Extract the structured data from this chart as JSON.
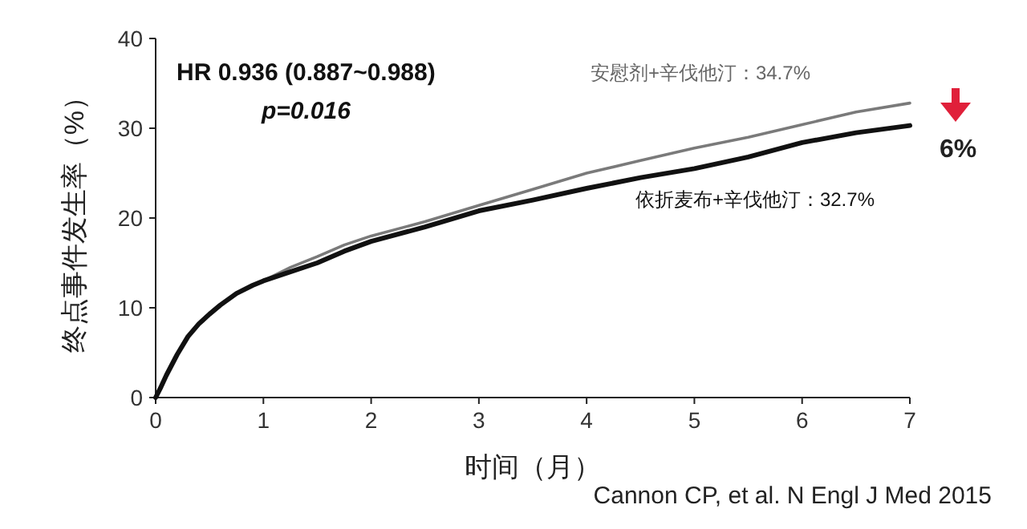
{
  "chart_data": {
    "type": "line",
    "xlabel": "时间（月）",
    "ylabel": "终点事件发生率（%）",
    "x": [
      0,
      0.05,
      0.1,
      0.2,
      0.3,
      0.4,
      0.5,
      0.6,
      0.75,
      0.9,
      1,
      1.25,
      1.5,
      1.75,
      2,
      2.5,
      3,
      3.5,
      4,
      4.5,
      5,
      5.5,
      6,
      6.5,
      7
    ],
    "series": [
      {
        "name": "安慰剂+辛伐他汀：34.7%",
        "color": "#7a7a7a",
        "values": [
          0,
          1.2,
          2.5,
          4.8,
          6.8,
          8.2,
          9.3,
          10.3,
          11.6,
          12.5,
          13,
          14.5,
          15.7,
          17,
          18,
          19.6,
          21.4,
          23.2,
          25,
          26.4,
          27.8,
          29,
          30.4,
          31.8,
          32.8
        ]
      },
      {
        "name": "依折麦布+辛伐他汀：32.7%",
        "color": "#111111",
        "values": [
          0,
          1.2,
          2.5,
          4.8,
          6.8,
          8.2,
          9.3,
          10.3,
          11.6,
          12.5,
          13,
          14,
          15,
          16.3,
          17.4,
          19,
          20.8,
          22,
          23.3,
          24.5,
          25.5,
          26.8,
          28.4,
          29.5,
          30.3
        ]
      }
    ],
    "xlim": [
      0,
      7
    ],
    "xticks": [
      0,
      1,
      2,
      3,
      4,
      5,
      6,
      7
    ],
    "ylim": [
      0,
      40
    ],
    "yticks": [
      0,
      10,
      20,
      30,
      40
    ],
    "grid": false,
    "marker": "none",
    "line_style": "solid",
    "annotations": [
      "HR 0.936 (0.887~0.988)",
      "p=0.016",
      "6%",
      "Cannon CP, et al. N Engl J Med 2015"
    ]
  }
}
